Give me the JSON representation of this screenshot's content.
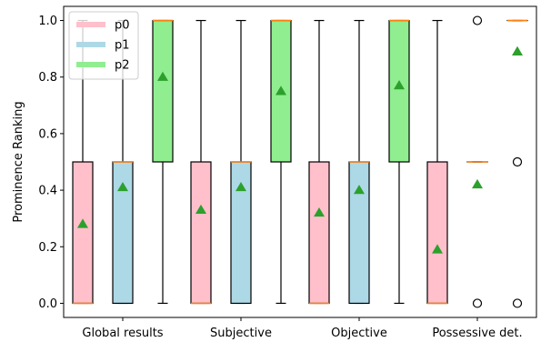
{
  "chart_data": {
    "type": "boxplot",
    "title": "",
    "xlabel": "",
    "ylabel": "Prominence Ranking",
    "ylim": [
      -0.05,
      1.05
    ],
    "yticks": [
      0.0,
      0.2,
      0.4,
      0.6,
      0.8,
      1.0
    ],
    "ytick_labels": [
      "0.0",
      "0.2",
      "0.4",
      "0.6",
      "0.8",
      "1.0"
    ],
    "categories": [
      "Global results",
      "Subjective",
      "Objective",
      "Possessive det."
    ],
    "legend": {
      "placement": "top-left",
      "entries": [
        "p0",
        "p1",
        "p2"
      ]
    },
    "colors": {
      "p0": "#ffc0cb",
      "p1": "#add8e6",
      "p2": "#90ee90",
      "median": "#ff7f0e",
      "mean": "#2ca02c",
      "outline": "#000000"
    },
    "series": [
      {
        "name": "p0",
        "boxes": [
          {
            "whisker_low": 0.0,
            "q1": 0.0,
            "median": 0.0,
            "q3": 0.5,
            "whisker_high": 1.0,
            "mean": 0.28,
            "outliers": []
          },
          {
            "whisker_low": 0.0,
            "q1": 0.0,
            "median": 0.0,
            "q3": 0.5,
            "whisker_high": 1.0,
            "mean": 0.33,
            "outliers": []
          },
          {
            "whisker_low": 0.0,
            "q1": 0.0,
            "median": 0.0,
            "q3": 0.5,
            "whisker_high": 1.0,
            "mean": 0.32,
            "outliers": []
          },
          {
            "whisker_low": 0.0,
            "q1": 0.0,
            "median": 0.0,
            "q3": 0.5,
            "whisker_high": 1.0,
            "mean": 0.19,
            "outliers": []
          }
        ]
      },
      {
        "name": "p1",
        "boxes": [
          {
            "whisker_low": 0.0,
            "q1": 0.0,
            "median": 0.5,
            "q3": 0.5,
            "whisker_high": 1.0,
            "mean": 0.41,
            "outliers": []
          },
          {
            "whisker_low": 0.0,
            "q1": 0.0,
            "median": 0.5,
            "q3": 0.5,
            "whisker_high": 1.0,
            "mean": 0.41,
            "outliers": []
          },
          {
            "whisker_low": 0.0,
            "q1": 0.0,
            "median": 0.5,
            "q3": 0.5,
            "whisker_high": 1.0,
            "mean": 0.4,
            "outliers": []
          },
          {
            "whisker_low": 0.5,
            "q1": 0.5,
            "median": 0.5,
            "q3": 0.5,
            "whisker_high": 0.5,
            "mean": 0.42,
            "outliers": [
              0.0,
              1.0
            ]
          }
        ]
      },
      {
        "name": "p2",
        "boxes": [
          {
            "whisker_low": 0.0,
            "q1": 0.5,
            "median": 1.0,
            "q3": 1.0,
            "whisker_high": 1.0,
            "mean": 0.8,
            "outliers": []
          },
          {
            "whisker_low": 0.0,
            "q1": 0.5,
            "median": 1.0,
            "q3": 1.0,
            "whisker_high": 1.0,
            "mean": 0.75,
            "outliers": []
          },
          {
            "whisker_low": 0.0,
            "q1": 0.5,
            "median": 1.0,
            "q3": 1.0,
            "whisker_high": 1.0,
            "mean": 0.77,
            "outliers": []
          },
          {
            "whisker_low": 1.0,
            "q1": 1.0,
            "median": 1.0,
            "q3": 1.0,
            "whisker_high": 1.0,
            "mean": 0.89,
            "outliers": [
              0.0,
              0.5
            ]
          }
        ]
      }
    ]
  }
}
